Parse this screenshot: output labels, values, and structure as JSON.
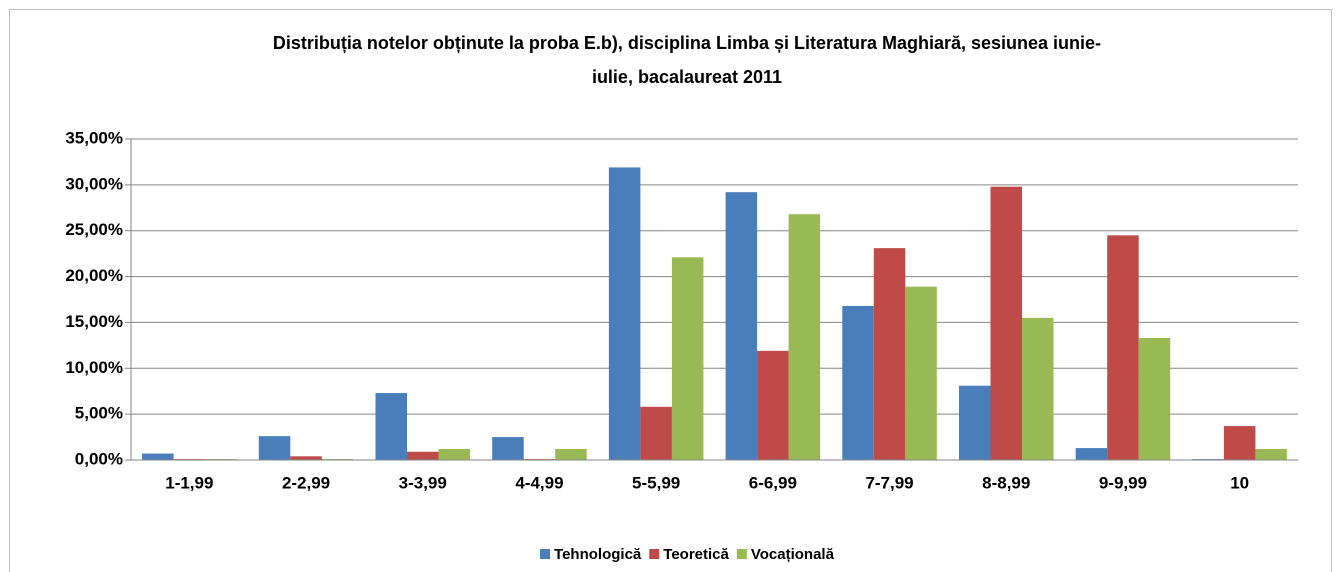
{
  "chart_data": {
    "type": "bar",
    "title": [
      "Distribuția notelor obținute la proba E.b), disciplina Limba și Literatura Maghiară, sesiunea iunie-",
      "iulie, bacalaureat 2011"
    ],
    "categories": [
      "1-1,99",
      "2-2,99",
      "3-3,99",
      "4-4,99",
      "5-5,99",
      "6-6,99",
      "7-7,99",
      "8-8,99",
      "9-9,99",
      "10"
    ],
    "series": [
      {
        "name": "Tehnologică",
        "color": "#4a7ebb",
        "values": [
          0.7,
          2.6,
          7.3,
          2.5,
          31.9,
          29.2,
          16.8,
          8.1,
          1.3,
          0.1
        ]
      },
      {
        "name": "Teoretică",
        "color": "#be4b48",
        "values": [
          0.1,
          0.4,
          0.9,
          0.1,
          5.8,
          11.9,
          23.1,
          29.8,
          24.5,
          3.7
        ]
      },
      {
        "name": "Vocațională",
        "color": "#98b954",
        "values": [
          0.1,
          0.1,
          1.2,
          1.2,
          22.1,
          26.8,
          18.9,
          15.5,
          13.3,
          1.2
        ]
      }
    ],
    "ylim": [
      0,
      35
    ],
    "yticks": [
      {
        "value": 0,
        "label": "0,00%"
      },
      {
        "value": 5,
        "label": "5,00%"
      },
      {
        "value": 10,
        "label": "10,00%"
      },
      {
        "value": 15,
        "label": "15,00%"
      },
      {
        "value": 20,
        "label": "20,00%"
      },
      {
        "value": 25,
        "label": "25,00%"
      },
      {
        "value": 30,
        "label": "30,00%"
      },
      {
        "value": 35,
        "label": "35,00%"
      }
    ],
    "grid": true,
    "legend": "bottom"
  }
}
